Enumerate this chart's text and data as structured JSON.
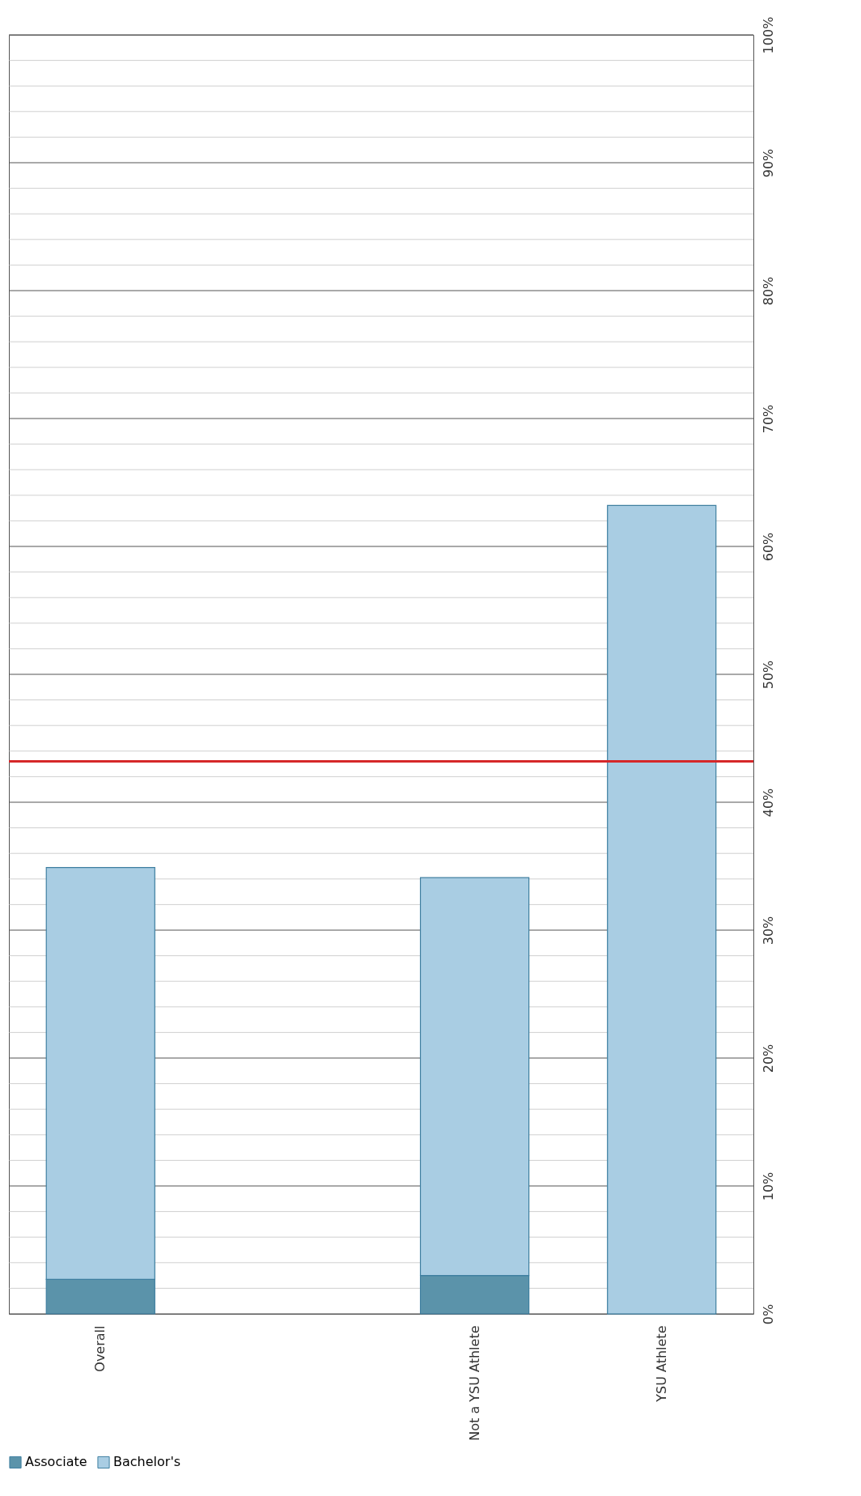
{
  "chart_data": {
    "type": "bar",
    "stacked": true,
    "categories": [
      "Overall",
      null,
      "Not a YSU Athlete",
      "YSU Athlete"
    ],
    "series": [
      {
        "name": "Associate",
        "color": "#5b93aa",
        "values": [
          2.7,
          null,
          3.0,
          0
        ]
      },
      {
        "name": "Bachelor's",
        "color": "#a9cde3",
        "values": [
          32.2,
          null,
          31.1,
          63.2
        ]
      }
    ],
    "ylim": [
      0,
      100
    ],
    "yticks": [
      {
        "value": 0,
        "label": "0%"
      },
      {
        "value": 2,
        "label": null
      },
      {
        "value": 4,
        "label": null
      },
      {
        "value": 6,
        "label": null
      },
      {
        "value": 8,
        "label": null
      },
      {
        "value": 10,
        "label": "10%"
      },
      {
        "value": 12,
        "label": null
      },
      {
        "value": 14,
        "label": null
      },
      {
        "value": 16,
        "label": null
      },
      {
        "value": 18,
        "label": null
      },
      {
        "value": 20,
        "label": "20%"
      },
      {
        "value": 22,
        "label": null
      },
      {
        "value": 24,
        "label": null
      },
      {
        "value": 26,
        "label": null
      },
      {
        "value": 28,
        "label": null
      },
      {
        "value": 30,
        "label": "30%"
      },
      {
        "value": 32,
        "label": null
      },
      {
        "value": 34,
        "label": null
      },
      {
        "value": 36,
        "label": null
      },
      {
        "value": 38,
        "label": null
      },
      {
        "value": 40,
        "label": "40%"
      },
      {
        "value": 42,
        "label": null
      },
      {
        "value": 44,
        "label": null
      },
      {
        "value": 46,
        "label": null
      },
      {
        "value": 48,
        "label": null
      },
      {
        "value": 50,
        "label": "50%"
      },
      {
        "value": 52,
        "label": null
      },
      {
        "value": 54,
        "label": null
      },
      {
        "value": 56,
        "label": null
      },
      {
        "value": 58,
        "label": null
      },
      {
        "value": 60,
        "label": "60%"
      },
      {
        "value": 62,
        "label": null
      },
      {
        "value": 64,
        "label": null
      },
      {
        "value": 66,
        "label": null
      },
      {
        "value": 68,
        "label": null
      },
      {
        "value": 70,
        "label": "70%"
      },
      {
        "value": 72,
        "label": null
      },
      {
        "value": 74,
        "label": null
      },
      {
        "value": 76,
        "label": null
      },
      {
        "value": 78,
        "label": null
      },
      {
        "value": 80,
        "label": "80%"
      },
      {
        "value": 82,
        "label": null
      },
      {
        "value": 84,
        "label": null
      },
      {
        "value": 86,
        "label": null
      },
      {
        "value": 88,
        "label": null
      },
      {
        "value": 90,
        "label": "90%"
      },
      {
        "value": 92,
        "label": null
      },
      {
        "value": 94,
        "label": null
      },
      {
        "value": 96,
        "label": null
      },
      {
        "value": 98,
        "label": null
      },
      {
        "value": 100,
        "label": "100%"
      }
    ],
    "grid": true,
    "ref_lines": [
      {
        "axis": "y",
        "value": 43.2,
        "color": "#d62728"
      }
    ],
    "legend": "bottom"
  }
}
